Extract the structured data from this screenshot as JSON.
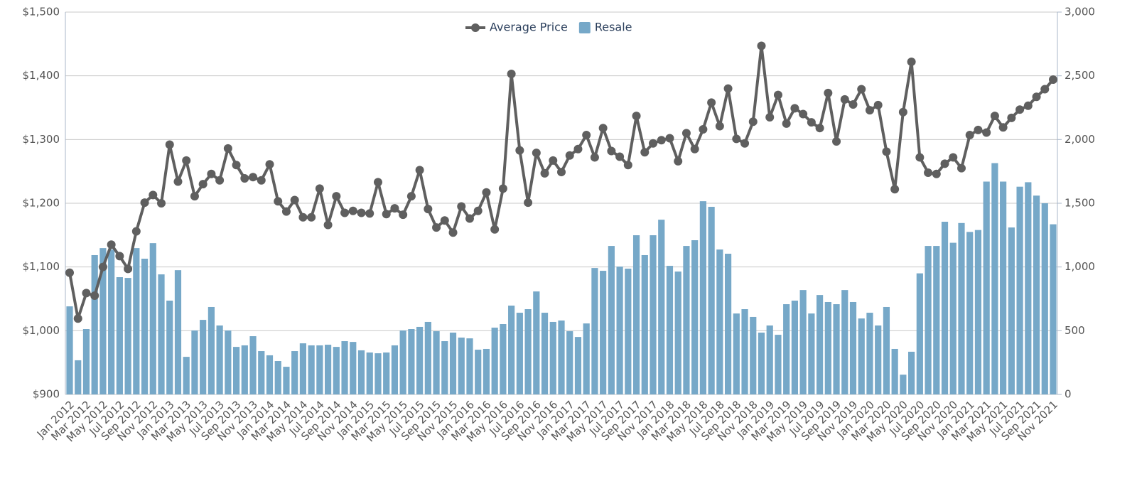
{
  "chart_data": {
    "type": "bar-line",
    "categories": [
      "Jan 2012",
      null,
      "Mar 2012",
      null,
      "May 2012",
      null,
      "Jul 2012",
      null,
      "Sep 2012",
      null,
      "Nov 2012",
      null,
      "Jan 2013",
      null,
      "Mar 2013",
      null,
      "May 2013",
      null,
      "Jul 2013",
      null,
      "Sep 2013",
      null,
      "Nov 2013",
      null,
      "Jan 2014",
      null,
      "Mar 2014",
      null,
      "May 2014",
      null,
      "Jul 2014",
      null,
      "Sep 2014",
      null,
      "Nov 2014",
      null,
      "Jan 2015",
      null,
      "Mar 2015",
      null,
      "May 2015",
      null,
      "Jul 2015",
      null,
      "Sep 2015",
      null,
      "Nov 2015",
      null,
      "Jan 2016",
      null,
      "Mar 2016",
      null,
      "May 2016",
      null,
      "Jul 2016",
      null,
      "Sep 2016",
      null,
      "Nov 2016",
      null,
      "Jan 2017",
      null,
      "Mar 2017",
      null,
      "May 2017",
      null,
      "Jul 2017",
      null,
      "Sep 2017",
      null,
      "Nov 2017",
      null,
      "Jan 2018",
      null,
      "Mar 2018",
      null,
      "May 2018",
      null,
      "Jul 2018",
      null,
      "Sep 2018",
      null,
      "Nov 2018",
      null,
      "Jan 2019",
      null,
      "Mar 2019",
      null,
      "May 2019",
      null,
      "Jul 2019",
      null,
      "Sep 2019",
      null,
      "Nov 2019",
      null,
      "Jan 2020",
      null,
      "Mar 2020",
      null,
      "May 2020",
      null,
      "Jul 2020",
      null,
      "Sep 2020",
      null,
      "Nov 2020",
      null,
      "Jan 2021",
      null,
      "Mar 2021",
      null,
      "May 2021",
      null,
      "Jul 2021",
      null,
      "Sep 2021",
      null,
      "Nov 2021"
    ],
    "series": [
      {
        "name": "Average Price",
        "type": "line",
        "color": "#5f5f5f",
        "values": [
          1091,
          1019,
          1059,
          1055,
          1100,
          1135,
          1117,
          1097,
          1156,
          1201,
          1213,
          1200,
          1292,
          1234,
          1267,
          1211,
          1230,
          1246,
          1236,
          1286,
          1260,
          1239,
          1241,
          1236,
          1261,
          1203,
          1187,
          1205,
          1178,
          1178,
          1223,
          1166,
          1211,
          1185,
          1188,
          1185,
          1184,
          1233,
          1183,
          1192,
          1182,
          1211,
          1252,
          1191,
          1162,
          1173,
          1154,
          1195,
          1176,
          1188,
          1217,
          1159,
          1223,
          1403,
          1283,
          1201,
          1279,
          1247,
          1267,
          1249,
          1275,
          1285,
          1307,
          1272,
          1318,
          1282,
          1273,
          1260,
          1337,
          1280,
          1294,
          1299,
          1302,
          1266,
          1310,
          1285,
          1316,
          1358,
          1321,
          1380,
          1301,
          1294,
          1328,
          1447,
          1335,
          1370,
          1325,
          1349,
          1340,
          1327,
          1318,
          1373,
          1297,
          1363,
          1355,
          1379,
          1346,
          1354,
          1281,
          1222,
          1343,
          1422,
          1272,
          1248,
          1246,
          1262,
          1272,
          1255,
          1307,
          1315,
          1311,
          1337,
          1319,
          1334,
          1347,
          1353,
          1367,
          1379,
          1394
        ]
      },
      {
        "name": "Resale",
        "type": "bar",
        "axis": "y2",
        "color": "#76a8c8",
        "values": [
          691,
          268,
          513,
          1093,
          1148,
          1137,
          920,
          914,
          1148,
          1065,
          1187,
          942,
          736,
          975,
          295,
          502,
          585,
          686,
          541,
          502,
          373,
          385,
          457,
          340,
          307,
          262,
          217,
          340,
          401,
          385,
          385,
          390,
          373,
          418,
          412,
          346,
          329,
          323,
          329,
          385,
          502,
          513,
          530,
          569,
          496,
          418,
          485,
          446,
          440,
          351,
          357,
          524,
          552,
          697,
          641,
          669,
          808,
          641,
          569,
          580,
          496,
          451,
          557,
          992,
          970,
          1165,
          1003,
          987,
          1249,
          1093,
          1249,
          1371,
          1009,
          964,
          1165,
          1210,
          1516,
          1472,
          1137,
          1104,
          635,
          669,
          608,
          485,
          541,
          468,
          708,
          736,
          819,
          635,
          780,
          725,
          708,
          819,
          725,
          596,
          641,
          541,
          686,
          357,
          155,
          335,
          950,
          1165,
          1165,
          1355,
          1190,
          1345,
          1275,
          1290,
          1670,
          1815,
          1670,
          1310,
          1630,
          1665,
          1560,
          1500,
          1335
        ]
      }
    ],
    "ylim": [
      900,
      1500
    ],
    "yticks": [
      {
        "value": 900,
        "label": "$900"
      },
      {
        "value": 1000,
        "label": "$1,000"
      },
      {
        "value": 1100,
        "label": "$1,100"
      },
      {
        "value": 1200,
        "label": "$1,200"
      },
      {
        "value": 1300,
        "label": "$1,300"
      },
      {
        "value": 1400,
        "label": "$1,400"
      },
      {
        "value": 1500,
        "label": "$1,500"
      }
    ],
    "y2lim": [
      0,
      3000
    ],
    "y2ticks": [
      0,
      500,
      {
        "value": 1000,
        "label": "1,000"
      },
      {
        "value": 1500,
        "label": "1,500"
      },
      {
        "value": 2000,
        "label": "2,000"
      },
      {
        "value": 2500,
        "label": "2,500"
      },
      {
        "value": 3000,
        "label": "3,000"
      }
    ],
    "grid": true,
    "legend": "top"
  }
}
